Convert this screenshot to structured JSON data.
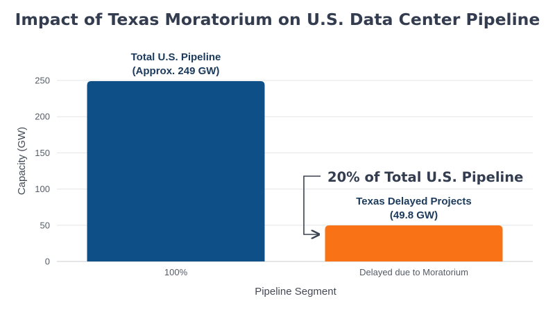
{
  "chart_data": {
    "type": "bar",
    "title": "Impact of Texas Moratorium on U.S. Data Center Pipeline",
    "xlabel": "Pipeline Segment",
    "ylabel": "Capacity (GW)",
    "categories": [
      "100%",
      "Delayed due to Moratorium"
    ],
    "values": [
      249,
      49.8
    ],
    "ylim": [
      0,
      250
    ],
    "yticks": [
      0,
      50,
      100,
      150,
      200,
      250
    ],
    "grid": true,
    "colors": [
      "#0d4f86",
      "#f97316"
    ],
    "bar_annotations": [
      [
        "Total U.S. Pipeline",
        "(Approx. 249 GW)"
      ],
      [
        "Texas Delayed Projects",
        "(49.8 GW)"
      ]
    ],
    "callout": "20% of Total U.S. Pipeline"
  }
}
